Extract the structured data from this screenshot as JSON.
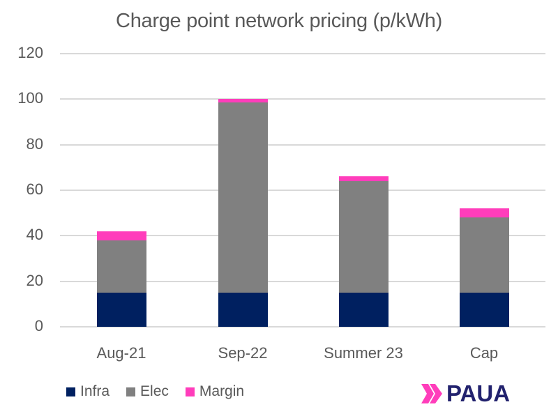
{
  "chart_data": {
    "type": "bar",
    "stacked": true,
    "title": "Charge point network pricing (p/kWh)",
    "xlabel": "",
    "ylabel": "",
    "categories": [
      "Aug-21",
      "Sep-22",
      "Summer 23",
      "Cap"
    ],
    "series": [
      {
        "name": "Infra",
        "color": "#002060",
        "values": [
          15,
          15,
          15,
          15
        ]
      },
      {
        "name": "Elec",
        "color": "#808080",
        "values": [
          23,
          83.5,
          49,
          33
        ]
      },
      {
        "name": "Margin",
        "color": "#ff3dbb",
        "values": [
          4,
          1.5,
          2,
          4
        ]
      }
    ],
    "totals": [
      42,
      100,
      66,
      52
    ],
    "ylim": [
      0,
      120
    ],
    "yticks": [
      "0",
      "20",
      "40",
      "60",
      "80",
      "100",
      "120"
    ],
    "grid": true,
    "legend_position": "bottom-left"
  },
  "logo": {
    "text": "PAUA",
    "icon": "double-chevron-icon",
    "accent": "#ff3dbb",
    "text_color": "#22226e"
  }
}
